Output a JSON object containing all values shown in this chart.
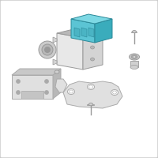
{
  "background_color": "#ffffff",
  "border_color": "#c8c8c8",
  "body_gray": "#d4d4d4",
  "body_gray_dark": "#b8b8b8",
  "body_gray_light": "#e8e8e8",
  "body_stroke": "#999999",
  "blue_fill": "#5bc4d4",
  "blue_fill_light": "#7dd8e4",
  "blue_fill_dark": "#3aacbc",
  "blue_stroke": "#2a8898",
  "bracket_fill": "#e0e0e0",
  "bracket_stroke": "#aaaaaa",
  "hw_fill": "#d0d0d0",
  "hw_stroke": "#999999",
  "lw": 0.7
}
